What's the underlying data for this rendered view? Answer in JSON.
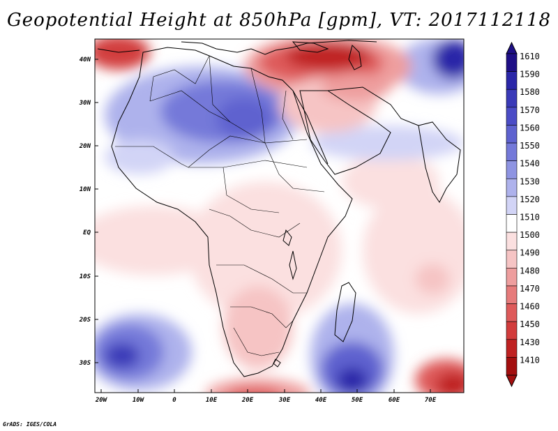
{
  "title": "Geopotential Height at 850hPa [gpm], VT: 2017112118",
  "credit": "GrADS: IGES/COLA",
  "lon_ticks": [
    "20W",
    "10W",
    "0",
    "10E",
    "20E",
    "30E",
    "40E",
    "50E",
    "60E",
    "70E"
  ],
  "lat_ticks": [
    "40N",
    "30N",
    "20N",
    "10N",
    "EQ",
    "10S",
    "20S",
    "30S"
  ],
  "colorbar": {
    "levels": [
      "1610",
      "1590",
      "1580",
      "1570",
      "1560",
      "1550",
      "1540",
      "1530",
      "1520",
      "1510",
      "1500",
      "1490",
      "1480",
      "1470",
      "1460",
      "1450",
      "1430",
      "1410"
    ],
    "colors": [
      "#1e0f86",
      "#2a26a8",
      "#3a3ab8",
      "#4b4cc6",
      "#5e62cf",
      "#7479d9",
      "#8e94e2",
      "#aeb2ec",
      "#d2d4f6",
      "#ffffff",
      "#fbe0e0",
      "#f6c4c4",
      "#ee9e9e",
      "#e67b7b",
      "#de5a5a",
      "#d23c3c",
      "#bf2222",
      "#a30f0f"
    ]
  },
  "map_fill": {
    "background_color": "#ffffff",
    "ocean_pink": "#fbe0e0",
    "high_blue": "#3a3ab8",
    "low_red": "#bf2222"
  }
}
